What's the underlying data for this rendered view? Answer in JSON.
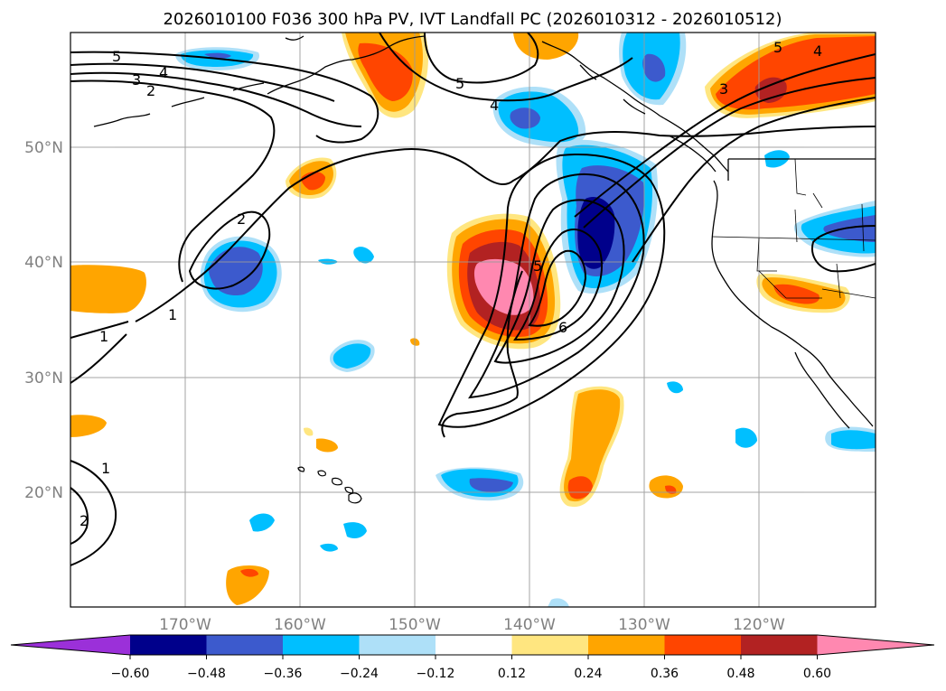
{
  "title": "2026010100 F036 300 hPa PV, IVT Landfall PC (2026010312 - 2026010512)",
  "map": {
    "lat_ticks": [
      "50°N",
      "40°N",
      "30°N",
      "20°N"
    ],
    "lon_ticks": [
      "170°W",
      "160°W",
      "150°W",
      "140°W",
      "130°W",
      "120°W"
    ],
    "grid": true
  },
  "colorbar": {
    "levels": [
      "−0.60",
      "−0.48",
      "−0.36",
      "−0.24",
      "−0.12",
      "0.12",
      "0.24",
      "0.36",
      "0.48",
      "0.60"
    ],
    "colors": {
      "under": "#9b30d9",
      "neg_060": "#00008b",
      "neg_048": "#3c5acd",
      "neg_036": "#00bfff",
      "neg_024": "#aee0f8",
      "neutral": "#ffffff",
      "pos_012": "#ffe680",
      "pos_024": "#ffa500",
      "pos_036": "#ff4500",
      "pos_048": "#b22222",
      "over": "#ff88b0"
    }
  },
  "contour_labels": {
    "c1": "5",
    "c2": "4",
    "c3": "3",
    "c4": "2",
    "c5": "2",
    "c6": "1",
    "c7": "1",
    "c8": "1",
    "c9": "2",
    "c10": "5",
    "c11": "4",
    "c12": "5",
    "c13": "6",
    "c14": "5",
    "c15": "4",
    "c16": "3"
  }
}
